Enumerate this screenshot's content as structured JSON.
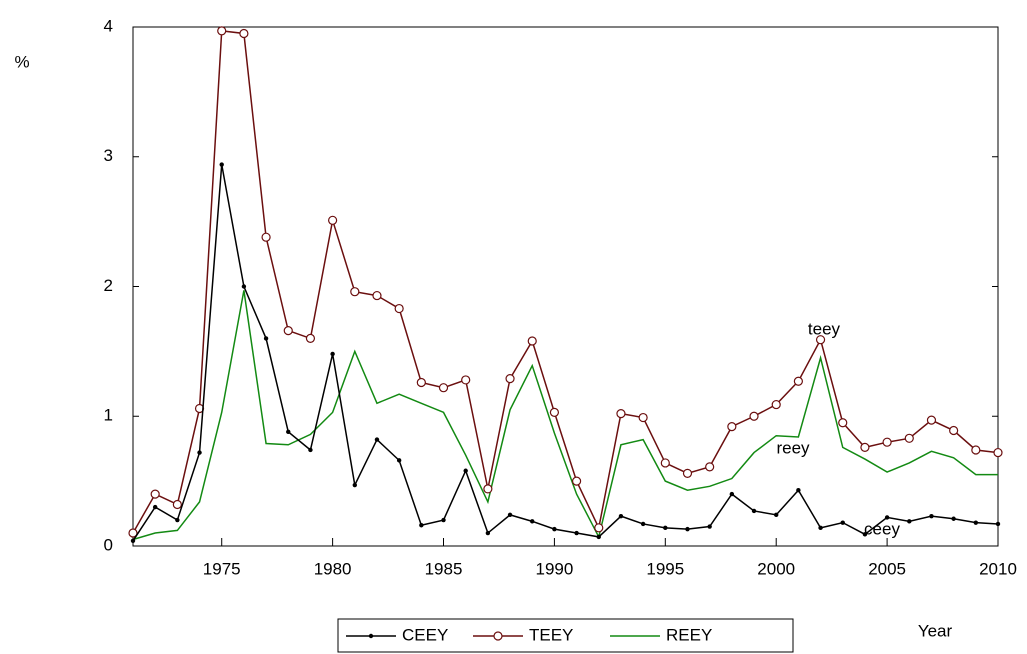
{
  "chart_data": {
    "type": "line",
    "y_label": "%",
    "x_label": "Year",
    "x": [
      1971,
      1972,
      1973,
      1974,
      1975,
      1976,
      1977,
      1978,
      1979,
      1980,
      1981,
      1982,
      1983,
      1984,
      1985,
      1986,
      1987,
      1988,
      1989,
      1990,
      1991,
      1992,
      1993,
      1994,
      1995,
      1996,
      1997,
      1998,
      1999,
      2000,
      2001,
      2002,
      2003,
      2004,
      2005,
      2006,
      2007,
      2008,
      2009,
      2010
    ],
    "series": [
      {
        "name": "CEEY",
        "color": "#000000",
        "marker": "dot",
        "values": [
          0.04,
          0.3,
          0.2,
          0.72,
          2.94,
          2.0,
          1.6,
          0.88,
          0.74,
          1.48,
          0.47,
          0.82,
          0.66,
          0.16,
          0.2,
          0.58,
          0.1,
          0.24,
          0.19,
          0.13,
          0.1,
          0.07,
          0.23,
          0.17,
          0.14,
          0.13,
          0.15,
          0.4,
          0.27,
          0.24,
          0.43,
          0.14,
          0.18,
          0.09,
          0.22,
          0.19,
          0.23,
          0.21,
          0.18,
          0.17
        ]
      },
      {
        "name": "TEEY",
        "color": "#6b0f0f",
        "marker": "circle",
        "values": [
          0.1,
          0.4,
          0.32,
          1.06,
          3.97,
          3.95,
          2.38,
          1.66,
          1.6,
          2.51,
          1.96,
          1.93,
          1.83,
          1.26,
          1.22,
          1.28,
          0.44,
          1.29,
          1.58,
          1.03,
          0.5,
          0.14,
          1.02,
          0.99,
          0.64,
          0.56,
          0.61,
          0.92,
          1.0,
          1.09,
          1.27,
          1.59,
          0.95,
          0.76,
          0.8,
          0.83,
          0.97,
          0.89,
          0.74,
          0.72
        ]
      },
      {
        "name": "REEY",
        "color": "#138a13",
        "marker": "none",
        "values": [
          0.05,
          0.1,
          0.12,
          0.34,
          1.03,
          1.97,
          0.79,
          0.78,
          0.86,
          1.03,
          1.5,
          1.1,
          1.17,
          1.1,
          1.03,
          0.7,
          0.34,
          1.05,
          1.39,
          0.87,
          0.4,
          0.07,
          0.78,
          0.82,
          0.5,
          0.43,
          0.46,
          0.52,
          0.72,
          0.85,
          0.84,
          1.45,
          0.76,
          0.67,
          0.57,
          0.64,
          0.73,
          0.68,
          0.55,
          0.55
        ]
      }
    ],
    "annotations": [
      "teey",
      "reey",
      "ceey"
    ],
    "xlim": [
      1971,
      2010
    ],
    "xticks": [
      1975,
      1980,
      1985,
      1990,
      1995,
      2000,
      2005,
      2010
    ],
    "ylim": [
      0,
      4
    ],
    "yticks": [
      0,
      1,
      2,
      3,
      4
    ],
    "grid": false,
    "legend": "bottom"
  }
}
